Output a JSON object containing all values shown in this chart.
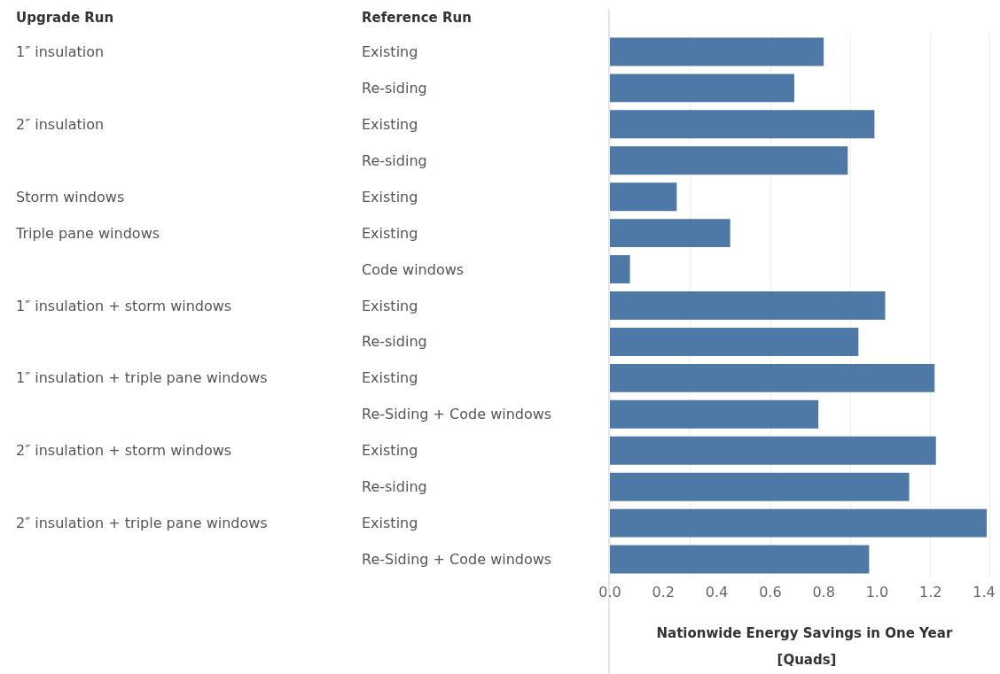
{
  "chart_data": {
    "type": "bar",
    "orientation": "horizontal",
    "annotations": [
      "Upgrade Run",
      "Reference Run"
    ],
    "xlabel": "Nationwide Energy Savings in One Year [Quads]",
    "categories": [
      "Existing",
      "Re-siding",
      "Existing",
      "Re-siding",
      "Existing",
      "Existing",
      "Code windows",
      "Existing",
      "Re-siding",
      "Existing",
      "Re-Siding + Code windows",
      "Existing",
      "Re-siding",
      "Existing",
      "Re-Siding + Code windows"
    ],
    "y2_categories": [
      "1″ insulation",
      null,
      "2″ insulation",
      null,
      "Storm windows",
      "Triple pane windows",
      null,
      "1″ insulation + storm windows",
      null,
      "1″ insulation + triple pane windows",
      null,
      "2″ insulation + storm windows",
      null,
      "2″ insulation + triple pane windows",
      null
    ],
    "values": [
      0.8,
      0.69,
      0.99,
      0.89,
      0.25,
      0.45,
      0.075,
      1.03,
      0.93,
      1.215,
      0.78,
      1.22,
      1.12,
      1.41,
      0.97
    ],
    "color": "#4e79a7",
    "xlim": [
      0,
      1.42
    ],
    "xticks": [
      {
        "value": 0,
        "label": "0.0"
      },
      {
        "value": 0.2,
        "label": "0.2"
      },
      {
        "value": 0.4,
        "label": "0.4"
      },
      {
        "value": 0.6,
        "label": "0.6"
      },
      {
        "value": 0.8,
        "label": "0.8"
      },
      {
        "value": 1,
        "label": "1.0"
      },
      {
        "value": 1.2,
        "label": "1.2"
      },
      {
        "value": 1.4,
        "label": "1.4"
      }
    ],
    "grid": "x"
  }
}
